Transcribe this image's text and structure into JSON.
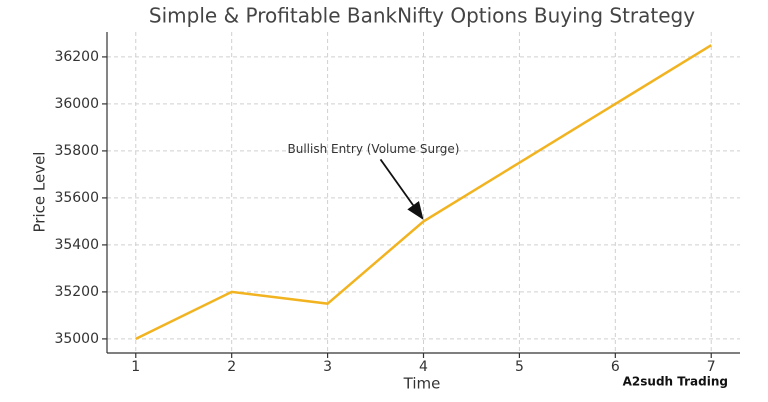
{
  "chart_data": {
    "type": "line",
    "title": "Simple & Profitable BankNifty Options Buying Strategy",
    "x_label": "Time",
    "y_label": "Price Level",
    "x": [
      1,
      2,
      3,
      4,
      5,
      6,
      7
    ],
    "series": [
      {
        "color": "#f2b320",
        "values": [
          35000,
          35200,
          35150,
          35500,
          35750,
          36000,
          36250
        ]
      }
    ],
    "xlim": [
      0.7,
      7.3
    ],
    "xticks": [
      1,
      2,
      3,
      4,
      5,
      6,
      7
    ],
    "ylim": [
      34940,
      36306
    ],
    "yticks": [
      35000,
      35200,
      35400,
      35600,
      35800,
      36000,
      36200
    ],
    "grid": true,
    "annotations": [
      {
        "text": "Bullish Entry (Volume Surge)",
        "x": 4,
        "y": 35500
      }
    ],
    "watermark": "A2sudh Trading"
  }
}
